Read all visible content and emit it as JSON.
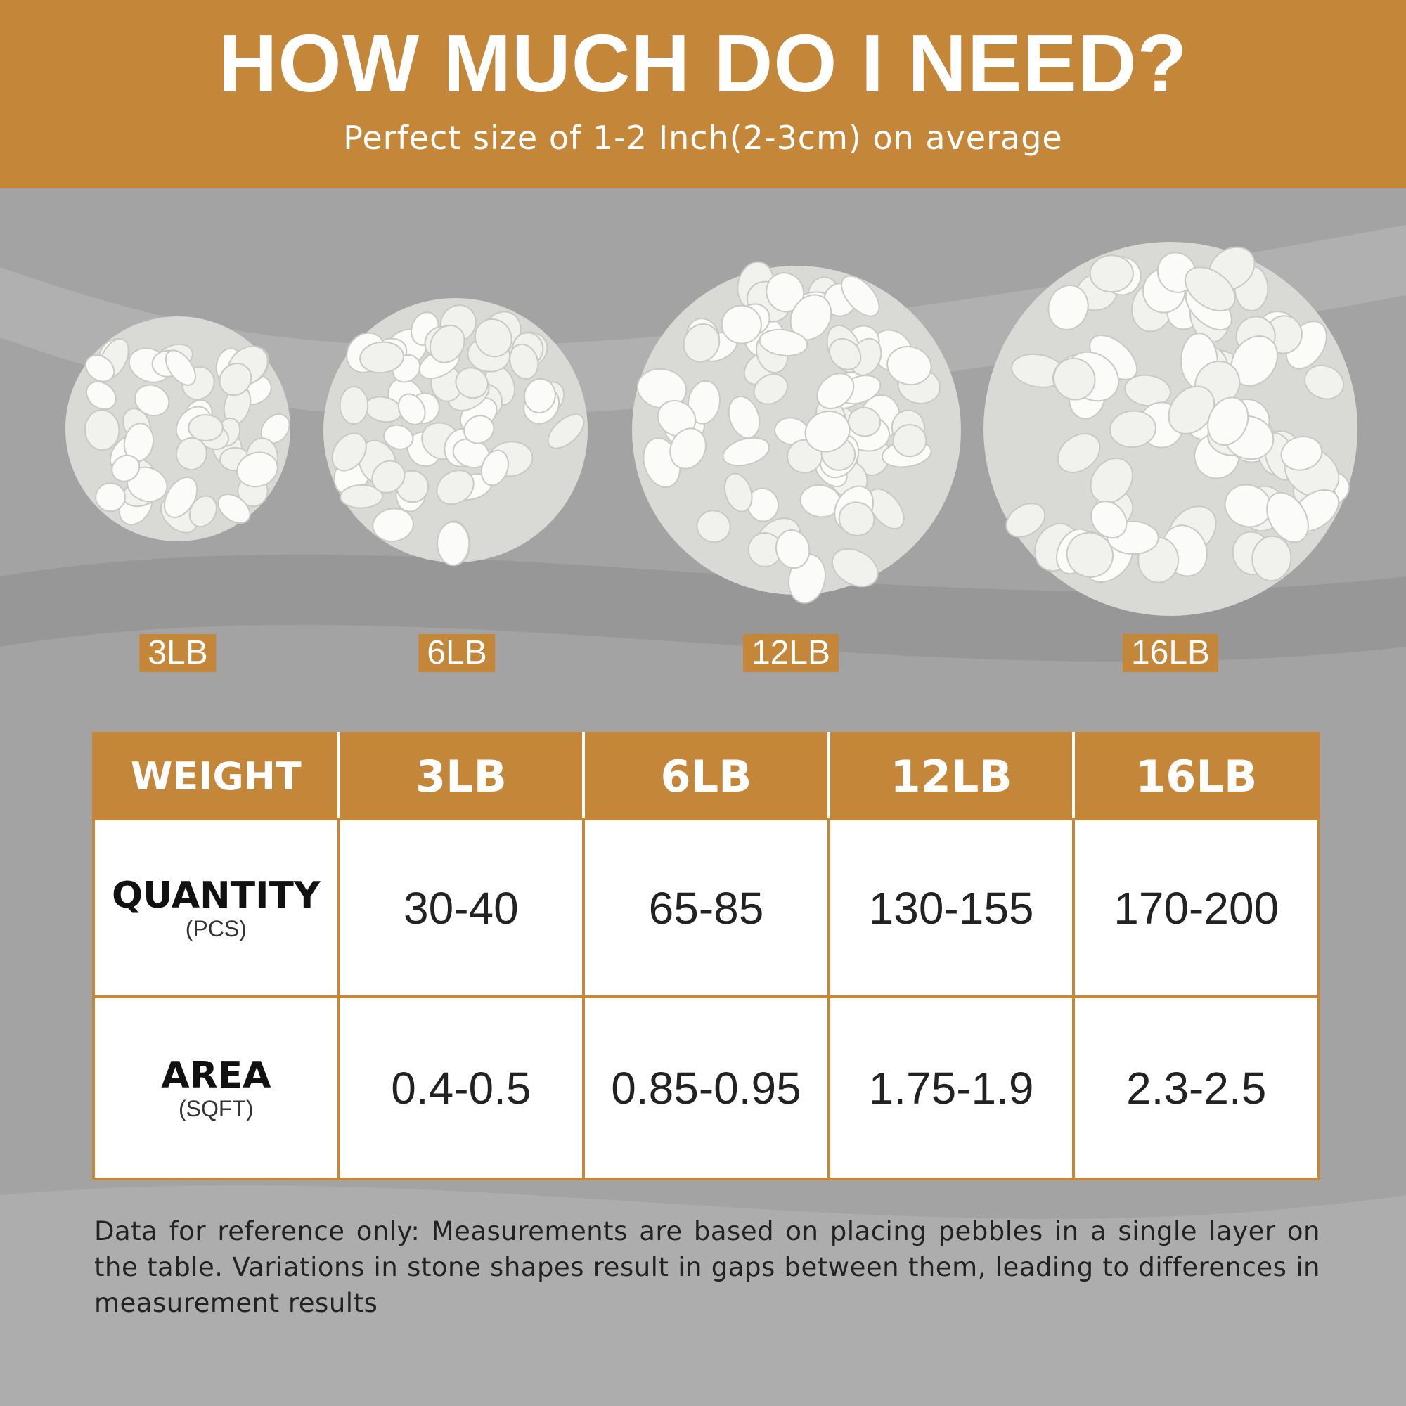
{
  "header": {
    "title": "HOW MUCH DO I NEED?",
    "subtitle": "Perfect size of 1-2 Inch(2-3cm) on average"
  },
  "samples": [
    "3LB",
    "6LB",
    "12LB",
    "16LB"
  ],
  "table": {
    "header": [
      "WEIGHT",
      "3LB",
      "6LB",
      "12LB",
      "16LB"
    ],
    "rows": [
      {
        "label": "QUANTITY",
        "unit": "(PCS)",
        "cells": [
          "30-40",
          "65-85",
          "130-155",
          "170-200"
        ]
      },
      {
        "label": "AREA",
        "unit": "(SQFT)",
        "cells": [
          "0.4-0.5",
          "0.85-0.95",
          "1.75-1.9",
          "2.3-2.5"
        ]
      }
    ]
  },
  "footnote": "Data for reference only: Measurements are based on placing pebbles in a single layer on the table. Variations in stone shapes result in gaps between them, leading to differences in measurement results"
}
